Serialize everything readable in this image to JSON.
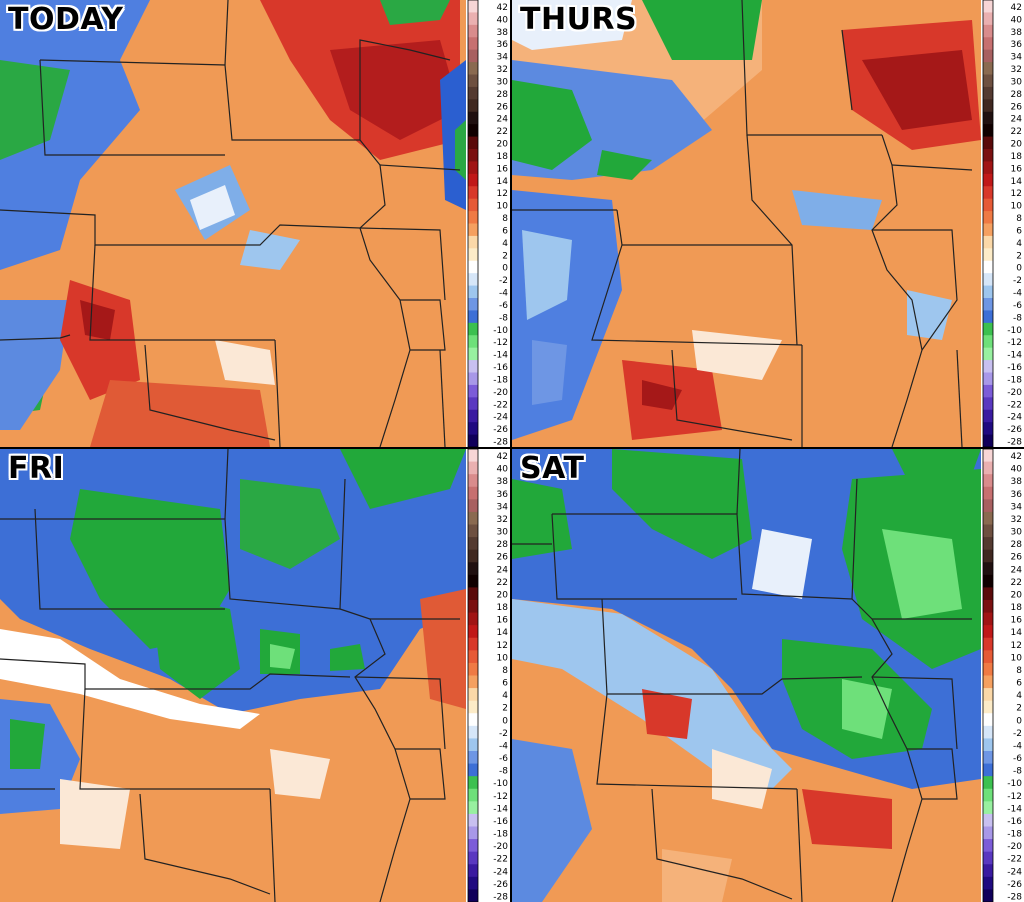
{
  "panels": [
    {
      "id": "p1",
      "label": "TODAY"
    },
    {
      "id": "p2",
      "label": "THURS"
    },
    {
      "id": "p3",
      "label": "FRI"
    },
    {
      "id": "p4",
      "label": "SAT"
    }
  ],
  "legend": {
    "ticks": [
      "42",
      "40",
      "38",
      "36",
      "34",
      "32",
      "30",
      "28",
      "26",
      "24",
      "22",
      "20",
      "18",
      "16",
      "14",
      "12",
      "10",
      "8",
      "6",
      "4",
      "2",
      "0",
      "-2",
      "-4",
      "-6",
      "-8",
      "-10",
      "-12",
      "-14",
      "-16",
      "-18",
      "-20",
      "-22",
      "-24",
      "-26",
      "-28"
    ],
    "colors": {
      "hot": "#7a1010",
      "red": "#d8382a",
      "orange": "#ef8a4a",
      "light-orange": "#f5b27a",
      "white": "#ffffff",
      "light-blue": "#9ec6ee",
      "blue": "#3d6fd6",
      "green": "#22a83a",
      "light-green": "#6ee07a",
      "purple": "#7c5cd8",
      "pink": "#f4c2c2",
      "brown": "#8a6a50"
    }
  }
}
